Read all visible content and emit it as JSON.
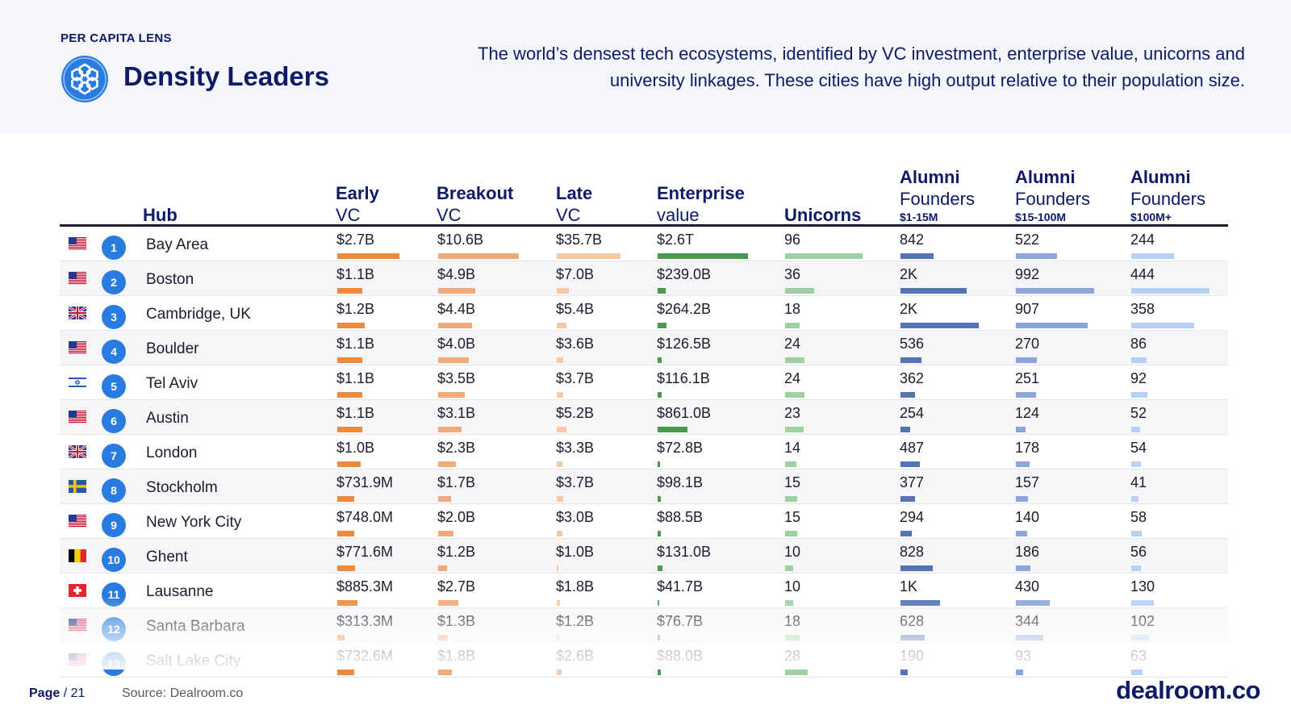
{
  "header": {
    "kicker": "PER CAPITA LENS",
    "title": "Density Leaders",
    "icon": "hexagon-cluster-icon",
    "subtitle_line1": "The world’s densest tech ecosystems, identified by VC investment, enterprise value, unicorns and",
    "subtitle_line2": "university linkages. These cities have high output relative to their population size."
  },
  "columns": {
    "hub": "Hub",
    "early_1": "Early",
    "early_2": "VC",
    "breakout_1": "Breakout",
    "breakout_2": "VC",
    "late_1": "Late",
    "late_2": "VC",
    "ev_1": "Enterprise",
    "ev_2": "value",
    "unicorns": "Unicorns",
    "a1_1": "Alumni",
    "a1_2": "Founders",
    "a1_3": "$1-15M",
    "a2_1": "Alumni",
    "a2_2": "Founders",
    "a2_3": "$15-100M",
    "a3_1": "Alumni",
    "a3_2": "Founders",
    "a3_3": "$100M+"
  },
  "colors": {
    "early": "#ef8a3c",
    "breakout": "#f0ab78",
    "late": "#f7c9a4",
    "enterprise_value": "#4a9a4d",
    "unicorns": "#9ed1a1",
    "alumni_1_15m": "#5473b8",
    "alumni_15_100m": "#89a7dd",
    "alumni_100m_plus": "#b7d0f5",
    "rank_badge": "#2a7be0",
    "title": "#0d1a66"
  },
  "bar_scale_max": {
    "early": 2.7,
    "breakout": 10.6,
    "late": 35.7,
    "enterprise_value": 2600,
    "unicorns": 96,
    "alumni_1_15m": 2000,
    "alumni_15_100m": 992,
    "alumni_100m_plus": 444
  },
  "rows": [
    {
      "rank": "1",
      "flag": "us",
      "hub": "Bay Area",
      "early": "$2.7B",
      "breakout": "$10.6B",
      "late": "$35.7B",
      "ev": "$2.6T",
      "unicorns": "96",
      "a1": "842",
      "a2": "522",
      "a3": "244",
      "v": [
        2.7,
        10.6,
        35.7,
        2600,
        96,
        842,
        522,
        244
      ]
    },
    {
      "rank": "2",
      "flag": "us",
      "hub": "Boston",
      "early": "$1.1B",
      "breakout": "$4.9B",
      "late": "$7.0B",
      "ev": "$239.0B",
      "unicorns": "36",
      "a1": "2K",
      "a2": "992",
      "a3": "444",
      "v": [
        1.1,
        4.9,
        7.0,
        239.0,
        36,
        1700,
        992,
        444
      ]
    },
    {
      "rank": "3",
      "flag": "uk",
      "hub": "Cambridge, UK",
      "early": "$1.2B",
      "breakout": "$4.4B",
      "late": "$5.4B",
      "ev": "$264.2B",
      "unicorns": "18",
      "a1": "2K",
      "a2": "907",
      "a3": "358",
      "v": [
        1.2,
        4.4,
        5.4,
        264.2,
        18,
        2000,
        907,
        358
      ]
    },
    {
      "rank": "4",
      "flag": "us",
      "hub": "Boulder",
      "early": "$1.1B",
      "breakout": "$4.0B",
      "late": "$3.6B",
      "ev": "$126.5B",
      "unicorns": "24",
      "a1": "536",
      "a2": "270",
      "a3": "86",
      "v": [
        1.1,
        4.0,
        3.6,
        126.5,
        24,
        536,
        270,
        86
      ]
    },
    {
      "rank": "5",
      "flag": "il",
      "hub": "Tel Aviv",
      "early": "$1.1B",
      "breakout": "$3.5B",
      "late": "$3.7B",
      "ev": "$116.1B",
      "unicorns": "24",
      "a1": "362",
      "a2": "251",
      "a3": "92",
      "v": [
        1.1,
        3.5,
        3.7,
        116.1,
        24,
        362,
        251,
        92
      ]
    },
    {
      "rank": "6",
      "flag": "us",
      "hub": "Austin",
      "early": "$1.1B",
      "breakout": "$3.1B",
      "late": "$5.2B",
      "ev": "$861.0B",
      "unicorns": "23",
      "a1": "254",
      "a2": "124",
      "a3": "52",
      "v": [
        1.1,
        3.1,
        5.2,
        861.0,
        23,
        254,
        124,
        52
      ]
    },
    {
      "rank": "7",
      "flag": "uk",
      "hub": "London",
      "early": "$1.0B",
      "breakout": "$2.3B",
      "late": "$3.3B",
      "ev": "$72.8B",
      "unicorns": "14",
      "a1": "487",
      "a2": "178",
      "a3": "54",
      "v": [
        1.0,
        2.3,
        3.3,
        72.8,
        14,
        487,
        178,
        54
      ]
    },
    {
      "rank": "8",
      "flag": "se",
      "hub": "Stockholm",
      "early": "$731.9M",
      "breakout": "$1.7B",
      "late": "$3.7B",
      "ev": "$98.1B",
      "unicorns": "15",
      "a1": "377",
      "a2": "157",
      "a3": "41",
      "v": [
        0.7319,
        1.7,
        3.7,
        98.1,
        15,
        377,
        157,
        41
      ]
    },
    {
      "rank": "9",
      "flag": "us",
      "hub": "New York City",
      "early": "$748.0M",
      "breakout": "$2.0B",
      "late": "$3.0B",
      "ev": "$88.5B",
      "unicorns": "15",
      "a1": "294",
      "a2": "140",
      "a3": "58",
      "v": [
        0.748,
        2.0,
        3.0,
        88.5,
        15,
        294,
        140,
        58
      ]
    },
    {
      "rank": "10",
      "flag": "be",
      "hub": "Ghent",
      "early": "$771.6M",
      "breakout": "$1.2B",
      "late": "$1.0B",
      "ev": "$131.0B",
      "unicorns": "10",
      "a1": "828",
      "a2": "186",
      "a3": "56",
      "v": [
        0.7716,
        1.2,
        1.0,
        131.0,
        10,
        828,
        186,
        56
      ]
    },
    {
      "rank": "11",
      "flag": "ch",
      "hub": "Lausanne",
      "early": "$885.3M",
      "breakout": "$2.7B",
      "late": "$1.8B",
      "ev": "$41.7B",
      "unicorns": "10",
      "a1": "1K",
      "a2": "430",
      "a3": "130",
      "v": [
        0.8853,
        2.7,
        1.8,
        41.7,
        10,
        1000,
        430,
        130
      ]
    },
    {
      "rank": "12",
      "flag": "us",
      "hub": "Santa Barbara",
      "early": "$313.3M",
      "breakout": "$1.3B",
      "late": "$1.2B",
      "ev": "$76.7B",
      "unicorns": "18",
      "a1": "628",
      "a2": "344",
      "a3": "102",
      "v": [
        0.3133,
        1.3,
        1.2,
        76.7,
        18,
        628,
        344,
        102
      ]
    },
    {
      "rank": "13",
      "flag": "us",
      "hub": "Salt Lake City",
      "early": "$732.6M",
      "breakout": "$1.8B",
      "late": "$2.6B",
      "ev": "$88.0B",
      "unicorns": "28",
      "a1": "190",
      "a2": "93",
      "a3": "63",
      "v": [
        0.7326,
        1.8,
        2.6,
        88.0,
        28,
        190,
        93,
        63
      ]
    }
  ],
  "footer": {
    "page_label": "Page",
    "page_number": "/ 21",
    "source": "Source: Dealroom.co",
    "brand": "dealroom.co"
  }
}
